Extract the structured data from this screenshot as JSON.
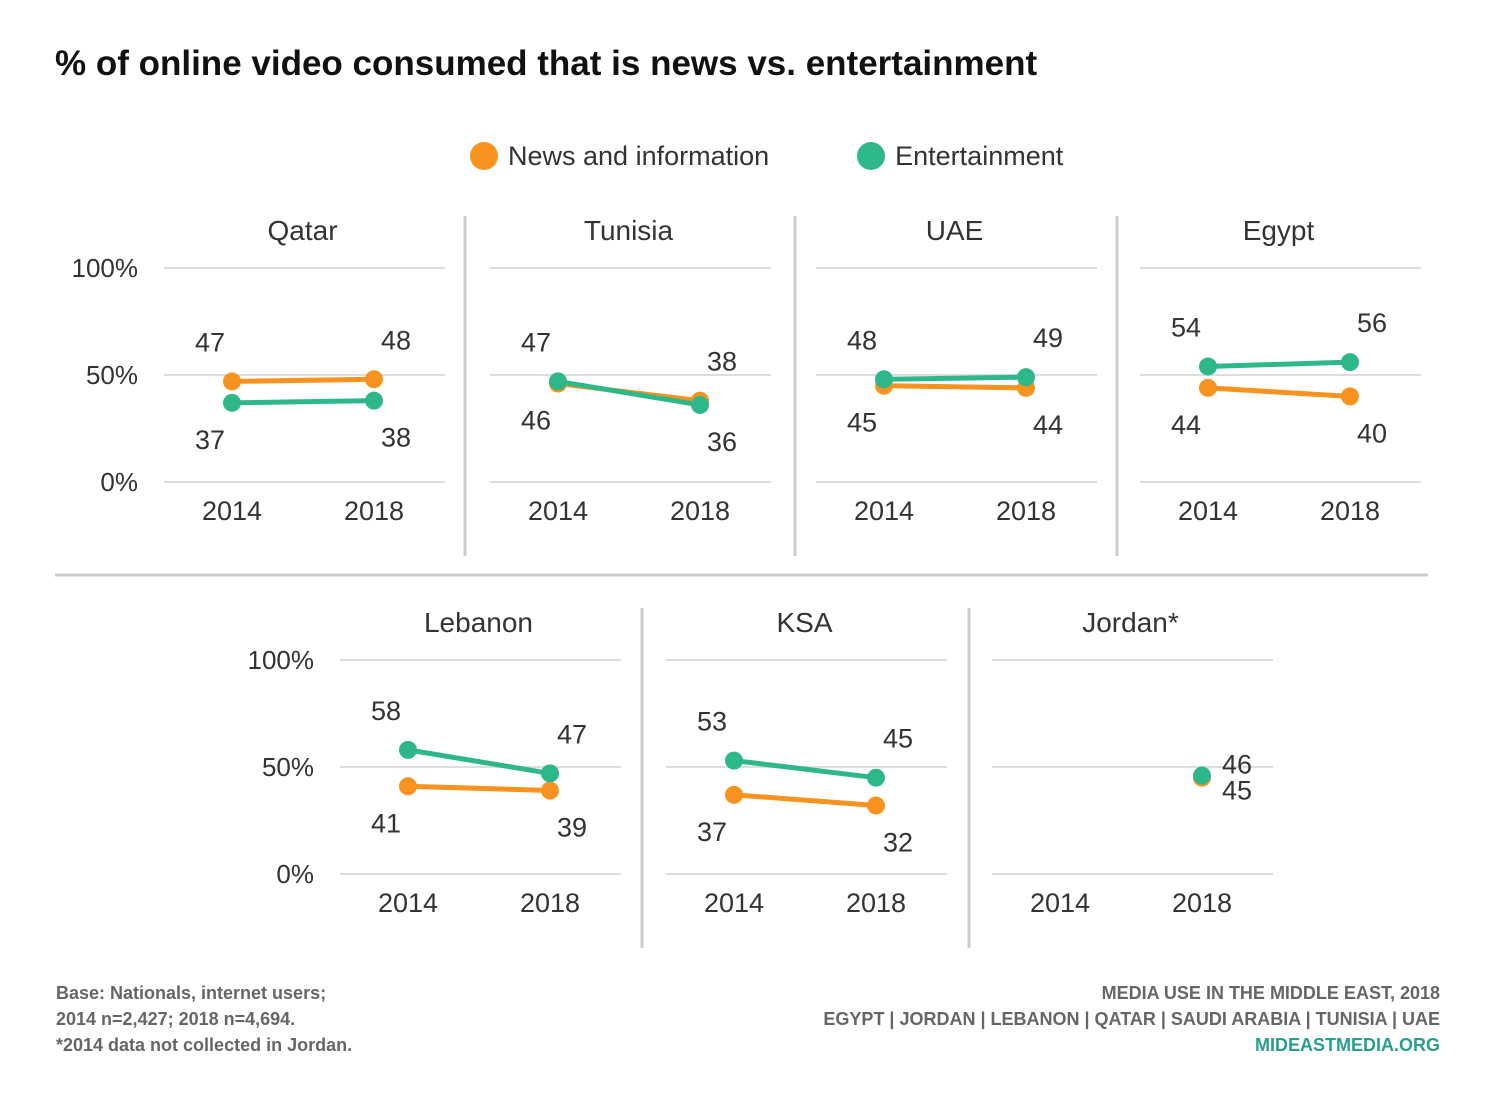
{
  "chart_data": {
    "type": "line",
    "title": "% of online video consumed that is news vs. entertainment",
    "colors": {
      "news": "#F7931E",
      "entertainment": "#2EB88A"
    },
    "legend": [
      "News and information",
      "Entertainment"
    ],
    "legend_placement": "top-center",
    "x": [
      "2014",
      "2018"
    ],
    "y_ticks": [
      "0%",
      "50%",
      "100%"
    ],
    "ylim": [
      0,
      100
    ],
    "grid": true,
    "panels": [
      {
        "title": "Qatar",
        "series": [
          {
            "name": "News and information",
            "values": [
              47,
              48
            ]
          },
          {
            "name": "Entertainment",
            "values": [
              37,
              38
            ]
          }
        ]
      },
      {
        "title": "Tunisia",
        "series": [
          {
            "name": "News and information",
            "values": [
              46,
              38
            ]
          },
          {
            "name": "Entertainment",
            "values": [
              47,
              36
            ]
          }
        ]
      },
      {
        "title": "UAE",
        "series": [
          {
            "name": "News and information",
            "values": [
              45,
              44
            ]
          },
          {
            "name": "Entertainment",
            "values": [
              48,
              49
            ]
          }
        ]
      },
      {
        "title": "Egypt",
        "series": [
          {
            "name": "News and information",
            "values": [
              44,
              40
            ]
          },
          {
            "name": "Entertainment",
            "values": [
              54,
              56
            ]
          }
        ]
      },
      {
        "title": "Lebanon",
        "series": [
          {
            "name": "News and information",
            "values": [
              41,
              39
            ]
          },
          {
            "name": "Entertainment",
            "values": [
              58,
              47
            ]
          }
        ]
      },
      {
        "title": "KSA",
        "series": [
          {
            "name": "News and information",
            "values": [
              37,
              32
            ]
          },
          {
            "name": "Entertainment",
            "values": [
              53,
              45
            ]
          }
        ]
      },
      {
        "title": "Jordan*",
        "series": [
          {
            "name": "News and information",
            "values": [
              null,
              45
            ]
          },
          {
            "name": "Entertainment",
            "values": [
              null,
              46
            ]
          }
        ]
      }
    ]
  },
  "footer": {
    "left": [
      "Base: Nationals, internet users;",
      "2014 n=2,427; 2018 n=4,694.",
      "*2014 data not collected in Jordan."
    ],
    "right_line1": "MEDIA USE IN THE MIDDLE EAST, 2018",
    "right_line2": "EGYPT | JORDAN | LEBANON | QATAR | SAUDI ARABIA | TUNISIA | UAE",
    "right_line3": "MIDEASTMEDIA.ORG"
  }
}
